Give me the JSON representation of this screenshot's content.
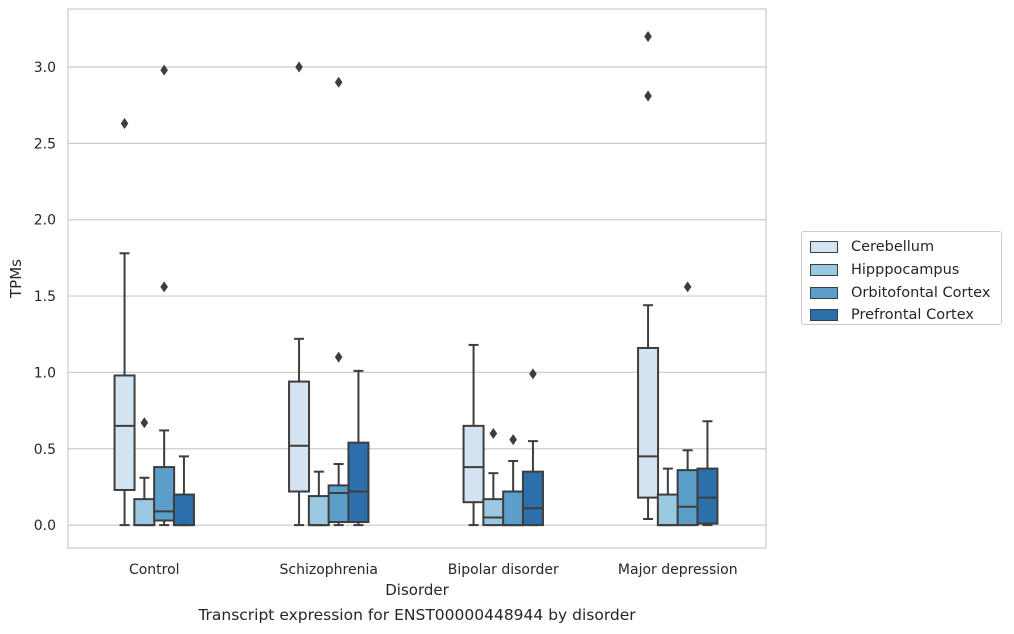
{
  "chart_data": {
    "type": "box",
    "title": "",
    "caption": "Transcript expression for ENST00000448944 by disorder",
    "xlabel": "Disorder",
    "ylabel": "TPMs",
    "ylim": [
      -0.15,
      3.38
    ],
    "yticks": [
      "0.0",
      "0.5",
      "1.0",
      "1.5",
      "2.0",
      "2.5",
      "3.0"
    ],
    "grid": "horizontal",
    "legend_position": "right",
    "categories": [
      "Control",
      "Schizophrenia",
      "Bipolar disorder",
      "Major depression"
    ],
    "series": [
      {
        "name": "Cerebellum",
        "color": "#d3e3f2",
        "boxes": [
          {
            "whisker_low": 0.0,
            "q1": 0.23,
            "median": 0.65,
            "q3": 0.98,
            "whisker_high": 1.78,
            "outliers": [
              2.63
            ]
          },
          {
            "whisker_low": 0.0,
            "q1": 0.22,
            "median": 0.52,
            "q3": 0.94,
            "whisker_high": 1.22,
            "outliers": [
              3.0
            ]
          },
          {
            "whisker_low": 0.0,
            "q1": 0.15,
            "median": 0.38,
            "q3": 0.65,
            "whisker_high": 1.18,
            "outliers": []
          },
          {
            "whisker_low": 0.04,
            "q1": 0.18,
            "median": 0.45,
            "q3": 1.16,
            "whisker_high": 1.44,
            "outliers": [
              2.81,
              3.2
            ]
          }
        ]
      },
      {
        "name": "Hipppocampus",
        "color": "#9ac8e0",
        "boxes": [
          {
            "whisker_low": 0.0,
            "q1": 0.0,
            "median": 0.0,
            "q3": 0.17,
            "whisker_high": 0.31,
            "outliers": [
              0.67
            ]
          },
          {
            "whisker_low": 0.0,
            "q1": 0.0,
            "median": 0.0,
            "q3": 0.19,
            "whisker_high": 0.35,
            "outliers": []
          },
          {
            "whisker_low": 0.0,
            "q1": 0.0,
            "median": 0.05,
            "q3": 0.17,
            "whisker_high": 0.34,
            "outliers": [
              0.6
            ]
          },
          {
            "whisker_low": 0.0,
            "q1": 0.0,
            "median": 0.0,
            "q3": 0.2,
            "whisker_high": 0.37,
            "outliers": []
          }
        ]
      },
      {
        "name": "Orbitofontal Cortex",
        "color": "#5a9ec9",
        "boxes": [
          {
            "whisker_low": 0.0,
            "q1": 0.03,
            "median": 0.09,
            "q3": 0.38,
            "whisker_high": 0.62,
            "outliers": [
              1.56,
              2.98
            ]
          },
          {
            "whisker_low": 0.0,
            "q1": 0.02,
            "median": 0.21,
            "q3": 0.26,
            "whisker_high": 0.4,
            "outliers": [
              1.1,
              2.9
            ]
          },
          {
            "whisker_low": 0.0,
            "q1": 0.0,
            "median": 0.0,
            "q3": 0.22,
            "whisker_high": 0.42,
            "outliers": [
              0.56
            ]
          },
          {
            "whisker_low": 0.0,
            "q1": 0.0,
            "median": 0.12,
            "q3": 0.36,
            "whisker_high": 0.49,
            "outliers": [
              1.56
            ]
          }
        ]
      },
      {
        "name": "Prefrontal Cortex",
        "color": "#2d6fab",
        "boxes": [
          {
            "whisker_low": 0.0,
            "q1": 0.0,
            "median": 0.0,
            "q3": 0.2,
            "whisker_high": 0.45,
            "outliers": []
          },
          {
            "whisker_low": 0.0,
            "q1": 0.02,
            "median": 0.22,
            "q3": 0.54,
            "whisker_high": 1.01,
            "outliers": []
          },
          {
            "whisker_low": 0.0,
            "q1": 0.0,
            "median": 0.11,
            "q3": 0.35,
            "whisker_high": 0.55,
            "outliers": [
              0.99
            ]
          },
          {
            "whisker_low": 0.0,
            "q1": 0.01,
            "median": 0.18,
            "q3": 0.37,
            "whisker_high": 0.68,
            "outliers": []
          }
        ]
      }
    ]
  }
}
